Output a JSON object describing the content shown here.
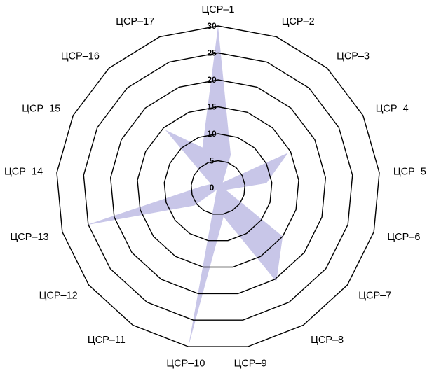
{
  "chart_data": {
    "type": "radar",
    "categories": [
      "ЦСР–1",
      "ЦСР–2",
      "ЦСР–3",
      "ЦСР–4",
      "ЦСР–5",
      "ЦСР–6",
      "ЦСР–7",
      "ЦСР–8",
      "ЦСР–9",
      "ЦСР–10",
      "ЦСР–11",
      "ЦСР–12",
      "ЦСР–13",
      "ЦСР–14",
      "ЦСР–15",
      "ЦСР–16",
      "ЦСР–17"
    ],
    "series": [
      {
        "color": "#c8c6e8",
        "values": [
          30,
          6.5,
          1.3,
          14.5,
          9,
          1.5,
          15,
          20.5,
          5.5,
          30,
          0.5,
          5.5,
          25.5,
          3,
          1.5,
          14.5,
          8
        ]
      }
    ],
    "rlim": [
      0,
      30
    ],
    "ticks": [
      0,
      5,
      10,
      15,
      20,
      25,
      30
    ],
    "tick_labels": [
      "0",
      "5",
      "10",
      "15",
      "20",
      "25",
      "30"
    ],
    "grid": true,
    "legend": "none"
  }
}
